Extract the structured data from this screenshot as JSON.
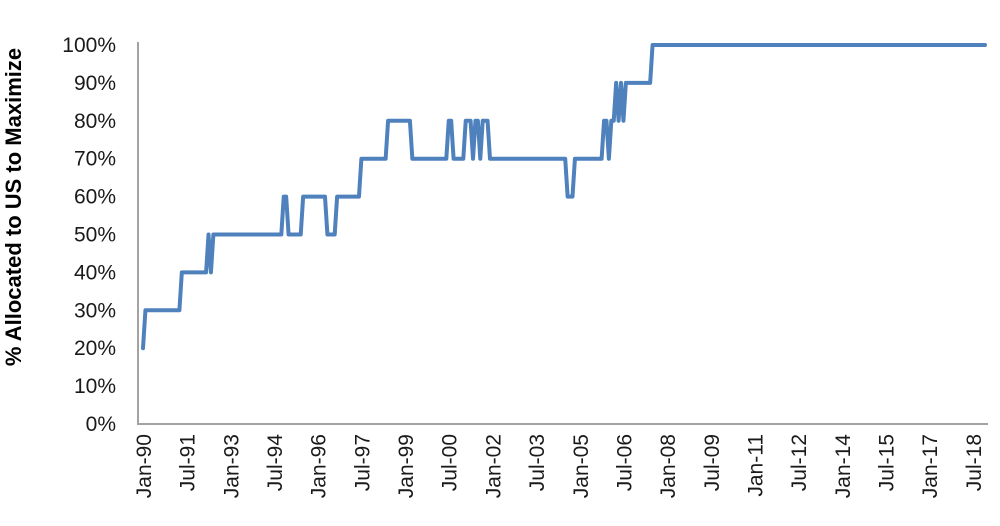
{
  "chart_data": {
    "type": "line",
    "title": "",
    "xlabel": "",
    "ylabel": "% Allocated to US to Maximize",
    "x_unit": "month",
    "x_range": [
      "1990-01",
      "2018-12"
    ],
    "ylim": [
      0,
      100
    ],
    "grid": false,
    "legend": "none",
    "line_color": "#4F81BD",
    "axis_color": "#A3A3A3",
    "tick_text_color": "#1A1A1A",
    "y_ticks": [
      {
        "label": "0%",
        "value": 0
      },
      {
        "label": "10%",
        "value": 10
      },
      {
        "label": "20%",
        "value": 20
      },
      {
        "label": "30%",
        "value": 30
      },
      {
        "label": "40%",
        "value": 40
      },
      {
        "label": "50%",
        "value": 50
      },
      {
        "label": "60%",
        "value": 60
      },
      {
        "label": "70%",
        "value": 70
      },
      {
        "label": "80%",
        "value": 80
      },
      {
        "label": "90%",
        "value": 90
      },
      {
        "label": "100%",
        "value": 100
      }
    ],
    "x_ticks": [
      {
        "label": "Jan-90",
        "month_index": 0
      },
      {
        "label": "Jul-91",
        "month_index": 18
      },
      {
        "label": "Jan-93",
        "month_index": 36
      },
      {
        "label": "Jul-94",
        "month_index": 54
      },
      {
        "label": "Jan-96",
        "month_index": 72
      },
      {
        "label": "Jul-97",
        "month_index": 90
      },
      {
        "label": "Jan-99",
        "month_index": 108
      },
      {
        "label": "Jul-00",
        "month_index": 126
      },
      {
        "label": "Jan-02",
        "month_index": 144
      },
      {
        "label": "Jul-03",
        "month_index": 162
      },
      {
        "label": "Jan-05",
        "month_index": 180
      },
      {
        "label": "Jul-06",
        "month_index": 198
      },
      {
        "label": "Jan-08",
        "month_index": 216
      },
      {
        "label": "Jul-09",
        "month_index": 234
      },
      {
        "label": "Jan-11",
        "month_index": 252
      },
      {
        "label": "Jul-12",
        "month_index": 270
      },
      {
        "label": "Jan-14",
        "month_index": 288
      },
      {
        "label": "Jul-15",
        "month_index": 306
      },
      {
        "label": "Jan-17",
        "month_index": 324
      },
      {
        "label": "Jul-18",
        "month_index": 342
      }
    ],
    "series": [
      {
        "name": "% Allocated to US",
        "frequency": "monthly",
        "monthly_segments": [
          {
            "from": "1990-01",
            "to": "1990-01",
            "value": 20
          },
          {
            "from": "1990-02",
            "to": "1991-04",
            "value": 30
          },
          {
            "from": "1991-05",
            "to": "1992-03",
            "value": 40
          },
          {
            "from": "1992-04",
            "to": "1992-04",
            "value": 50
          },
          {
            "from": "1992-05",
            "to": "1992-05",
            "value": 40
          },
          {
            "from": "1992-06",
            "to": "1994-10",
            "value": 50
          },
          {
            "from": "1994-11",
            "to": "1994-12",
            "value": 60
          },
          {
            "from": "1995-01",
            "to": "1995-06",
            "value": 50
          },
          {
            "from": "1995-07",
            "to": "1996-04",
            "value": 60
          },
          {
            "from": "1996-05",
            "to": "1996-08",
            "value": 50
          },
          {
            "from": "1996-09",
            "to": "1997-06",
            "value": 60
          },
          {
            "from": "1997-07",
            "to": "1998-05",
            "value": 70
          },
          {
            "from": "1998-06",
            "to": "1999-03",
            "value": 80
          },
          {
            "from": "1999-04",
            "to": "2000-06",
            "value": 70
          },
          {
            "from": "2000-07",
            "to": "2000-08",
            "value": 80
          },
          {
            "from": "2000-09",
            "to": "2001-01",
            "value": 70
          },
          {
            "from": "2001-02",
            "to": "2001-04",
            "value": 80
          },
          {
            "from": "2001-05",
            "to": "2001-05",
            "value": 70
          },
          {
            "from": "2001-06",
            "to": "2001-07",
            "value": 80
          },
          {
            "from": "2001-08",
            "to": "2001-08",
            "value": 70
          },
          {
            "from": "2001-09",
            "to": "2001-11",
            "value": 80
          },
          {
            "from": "2001-12",
            "to": "2004-07",
            "value": 70
          },
          {
            "from": "2004-08",
            "to": "2004-10",
            "value": 60
          },
          {
            "from": "2004-11",
            "to": "2005-10",
            "value": 70
          },
          {
            "from": "2005-11",
            "to": "2005-12",
            "value": 80
          },
          {
            "from": "2006-01",
            "to": "2006-01",
            "value": 70
          },
          {
            "from": "2006-02",
            "to": "2006-03",
            "value": 80
          },
          {
            "from": "2006-04",
            "to": "2006-04",
            "value": 90
          },
          {
            "from": "2006-05",
            "to": "2006-05",
            "value": 80
          },
          {
            "from": "2006-06",
            "to": "2006-06",
            "value": 90
          },
          {
            "from": "2006-07",
            "to": "2006-07",
            "value": 80
          },
          {
            "from": "2006-08",
            "to": "2007-06",
            "value": 90
          },
          {
            "from": "2007-07",
            "to": "2018-12",
            "value": 100
          }
        ]
      }
    ]
  }
}
